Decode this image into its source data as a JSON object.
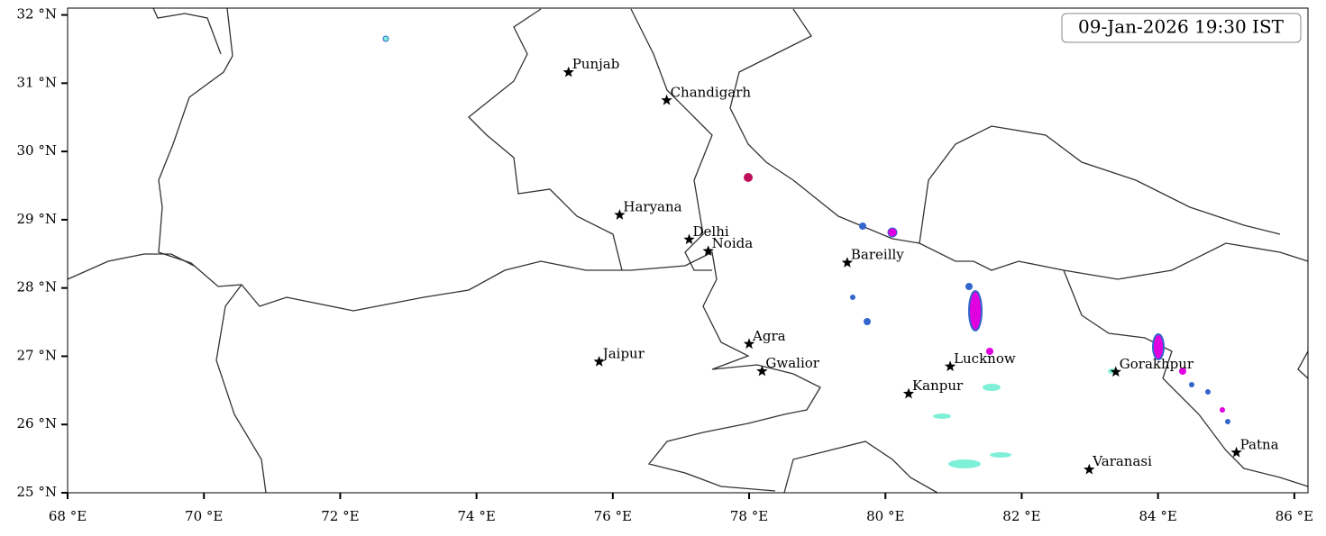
{
  "chart_data": {
    "type": "map",
    "title": "09-Jan-2026 19:30 IST",
    "xlim": [
      68,
      86.2
    ],
    "ylim": [
      25,
      32.1
    ],
    "xticks": [
      {
        "value": 68,
        "label": "68 °E"
      },
      {
        "value": 70,
        "label": "70 °E"
      },
      {
        "value": 72,
        "label": "72 °E"
      },
      {
        "value": 74,
        "label": "74 °E"
      },
      {
        "value": 76,
        "label": "76 °E"
      },
      {
        "value": 78,
        "label": "78 °E"
      },
      {
        "value": 80,
        "label": "80 °E"
      },
      {
        "value": 82,
        "label": "82 °E"
      },
      {
        "value": 84,
        "label": "84 °E"
      },
      {
        "value": 86,
        "label": "86 °E"
      }
    ],
    "yticks": [
      {
        "value": 25,
        "label": "25 °N"
      },
      {
        "value": 26,
        "label": "26 °N"
      },
      {
        "value": 27,
        "label": "27 °N"
      },
      {
        "value": 28,
        "label": "28 °N"
      },
      {
        "value": 29,
        "label": "29 °N"
      },
      {
        "value": 30,
        "label": "30 °N"
      },
      {
        "value": 31,
        "label": "31 °N"
      },
      {
        "value": 32,
        "label": "32 °N"
      }
    ],
    "points": [
      {
        "name": "Punjab",
        "x": 75.35,
        "y": 31.16
      },
      {
        "name": "Chandigarh",
        "x": 76.79,
        "y": 30.75
      },
      {
        "name": "Haryana",
        "x": 76.1,
        "y": 29.07
      },
      {
        "name": "Delhi",
        "x": 77.12,
        "y": 28.71
      },
      {
        "name": "Noida",
        "x": 77.4,
        "y": 28.54
      },
      {
        "name": "Bareilly",
        "x": 79.44,
        "y": 28.37
      },
      {
        "name": "Agra",
        "x": 78.0,
        "y": 27.18
      },
      {
        "name": "Gwalior",
        "x": 78.19,
        "y": 26.78
      },
      {
        "name": "Jaipur",
        "x": 75.8,
        "y": 26.92
      },
      {
        "name": "Lucknow",
        "x": 80.95,
        "y": 26.85
      },
      {
        "name": "Kanpur",
        "x": 80.34,
        "y": 26.45
      },
      {
        "name": "Gorakhpur",
        "x": 83.38,
        "y": 26.77
      },
      {
        "name": "Varanasi",
        "x": 82.99,
        "y": 25.34
      },
      {
        "name": "Patna",
        "x": 85.15,
        "y": 25.59
      }
    ]
  }
}
